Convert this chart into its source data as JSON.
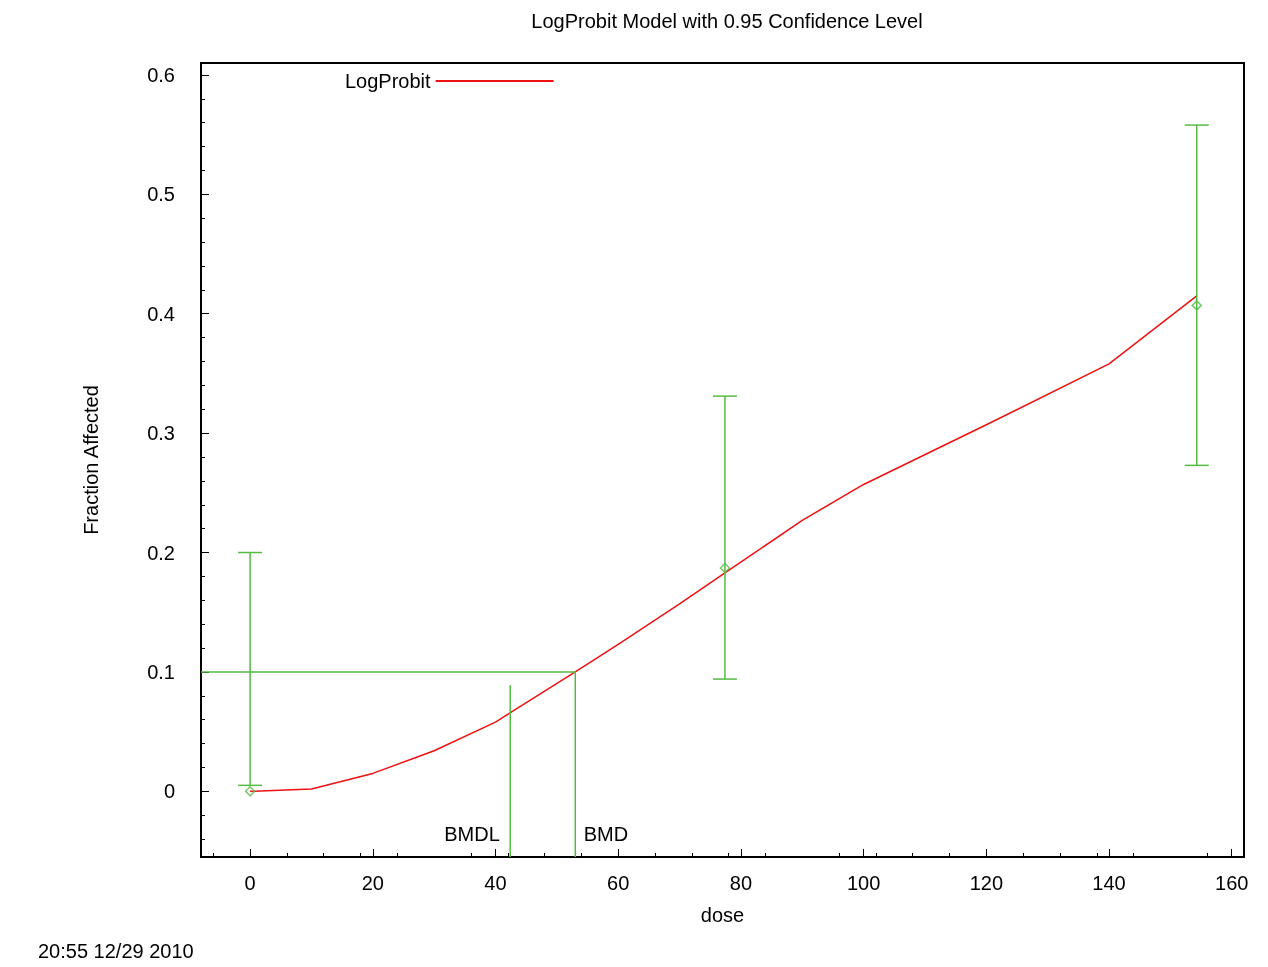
{
  "chart_data": {
    "type": "scatter",
    "title": "LogProbit Model with 0.95 Confidence Level",
    "xlabel": "dose",
    "ylabel": "Fraction Affected",
    "xlim": [
      -8,
      162
    ],
    "xticks": [
      0,
      20,
      40,
      60,
      80,
      100,
      120,
      140,
      160
    ],
    "ylim": [
      -0.055,
      0.61
    ],
    "yticks": [
      0,
      0.1,
      0.2,
      0.3,
      0.4,
      0.5,
      0.6
    ],
    "grid": false,
    "legend": "top left",
    "series": [
      {
        "color": "#55bb44",
        "marker": "diamond",
        "x": [
          0,
          77.4,
          154.3
        ],
        "values": [
          0,
          0.187,
          0.407
        ],
        "errors": [
          [
            0.005,
            0.2
          ],
          [
            0.094,
            0.331
          ],
          [
            0.273,
            0.558
          ]
        ]
      },
      {
        "type": "line",
        "name": "LogProbit",
        "color": "#ee1111",
        "marker": "none",
        "x": [
          0,
          10,
          20,
          30,
          40,
          53,
          60,
          70,
          78,
          90,
          100,
          120,
          140,
          154.3
        ],
        "values": [
          0,
          0.002,
          0.015,
          0.034,
          0.058,
          0.1,
          0.123,
          0.157,
          0.185,
          0.227,
          0.257,
          0.307,
          0.358,
          0.415
        ]
      },
      {
        "type": "line",
        "color": "#55bb44",
        "marker": "none",
        "x": [
          -8,
          53,
          53
        ],
        "values": [
          0.1,
          0.1,
          -0.055
        ]
      },
      {
        "type": "line",
        "color": "#55bb44",
        "marker": "none",
        "x": [
          42.4,
          42.4
        ],
        "values": [
          0.089,
          -0.055
        ]
      }
    ],
    "annotations": [
      "BMDL",
      "BMD",
      "20:55 12/29 2010"
    ]
  }
}
